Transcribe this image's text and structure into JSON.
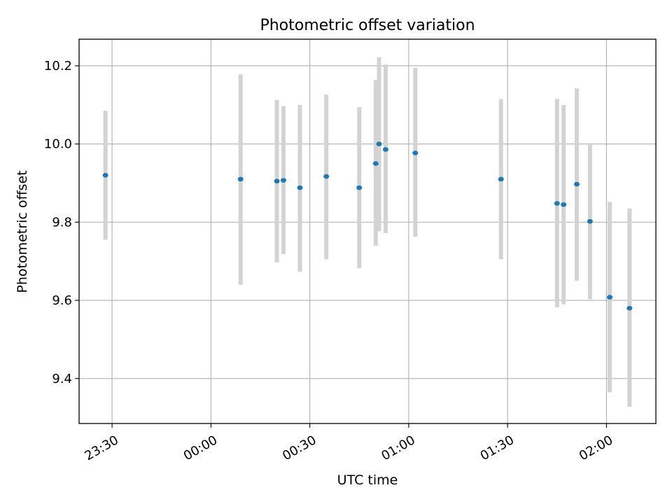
{
  "chart_data": {
    "type": "scatter",
    "title": "Photometric offset variation",
    "xlabel": "UTC time",
    "ylabel": "Photometric offset",
    "x_axis_type": "time",
    "x_ticks": [
      "23:30",
      "00:00",
      "00:30",
      "01:00",
      "01:30",
      "02:00"
    ],
    "y_ticks": [
      "9.4",
      "9.6",
      "9.8",
      "10.0",
      "10.2"
    ],
    "xlim": [
      "23:20",
      "02:15"
    ],
    "ylim": [
      9.285,
      10.268
    ],
    "grid": true,
    "legend": false,
    "colors": {
      "point": "#1f77b4",
      "errorbar": "#d3d3d3",
      "grid": "#b0b0b0"
    },
    "series": [
      {
        "points": [
          {
            "x": "23:28",
            "y": 9.92,
            "ylo": 9.755,
            "yhi": 10.085
          },
          {
            "x": "00:09",
            "y": 9.91,
            "ylo": 9.64,
            "yhi": 10.178
          },
          {
            "x": "00:20",
            "y": 9.905,
            "ylo": 9.697,
            "yhi": 10.113
          },
          {
            "x": "00:22",
            "y": 9.907,
            "ylo": 9.718,
            "yhi": 10.097
          },
          {
            "x": "00:27",
            "y": 9.888,
            "ylo": 9.673,
            "yhi": 10.1
          },
          {
            "x": "00:35",
            "y": 9.917,
            "ylo": 9.705,
            "yhi": 10.126
          },
          {
            "x": "00:45",
            "y": 9.888,
            "ylo": 9.682,
            "yhi": 10.094
          },
          {
            "x": "00:50",
            "y": 9.95,
            "ylo": 9.74,
            "yhi": 10.163
          },
          {
            "x": "00:51",
            "y": 10.0,
            "ylo": 9.777,
            "yhi": 10.222
          },
          {
            "x": "00:53",
            "y": 9.986,
            "ylo": 9.772,
            "yhi": 10.203
          },
          {
            "x": "01:02",
            "y": 9.977,
            "ylo": 9.763,
            "yhi": 10.195
          },
          {
            "x": "01:28",
            "y": 9.91,
            "ylo": 9.705,
            "yhi": 10.115
          },
          {
            "x": "01:45",
            "y": 9.848,
            "ylo": 9.582,
            "yhi": 10.115
          },
          {
            "x": "01:47",
            "y": 9.845,
            "ylo": 9.59,
            "yhi": 10.1
          },
          {
            "x": "01:51",
            "y": 9.897,
            "ylo": 9.65,
            "yhi": 10.142
          },
          {
            "x": "01:55",
            "y": 9.802,
            "ylo": 9.603,
            "yhi": 10.002
          },
          {
            "x": "02:01",
            "y": 9.608,
            "ylo": 9.365,
            "yhi": 9.852
          },
          {
            "x": "02:07",
            "y": 9.58,
            "ylo": 9.328,
            "yhi": 9.835
          }
        ]
      }
    ]
  }
}
